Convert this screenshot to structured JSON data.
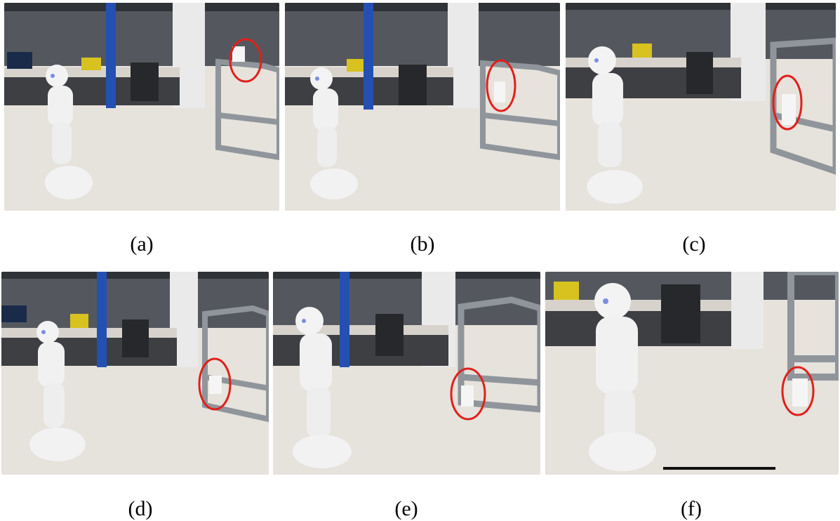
{
  "figure": {
    "panels": [
      {
        "id": "a",
        "caption": "(a)"
      },
      {
        "id": "b",
        "caption": "(b)"
      },
      {
        "id": "c",
        "caption": "(c)"
      },
      {
        "id": "d",
        "caption": "(d)"
      },
      {
        "id": "e",
        "caption": "(e)"
      },
      {
        "id": "f",
        "caption": "(f)"
      }
    ],
    "colors": {
      "highlight_circle": "#e0201b",
      "robot_blue_stand": "#2450b4",
      "floor": "#e6e2dc",
      "wall": "#4c4f55"
    }
  }
}
